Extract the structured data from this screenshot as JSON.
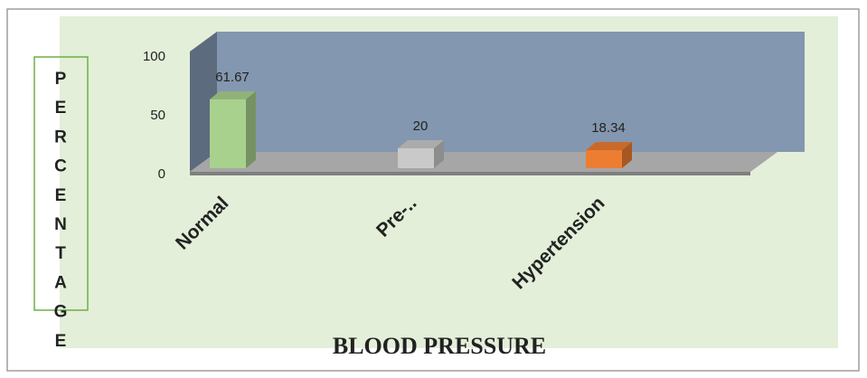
{
  "chart_data": {
    "type": "bar3d",
    "x_label": "BLOOD PRESSURE",
    "y_label": "PERCENTAGE",
    "categories": [
      "Normal",
      "Pre-..",
      "Hypertension"
    ],
    "values": [
      61.67,
      20,
      18.34
    ],
    "colors": [
      "#a9d18e",
      "#c9c9c9",
      "#ed7d31"
    ],
    "ylim": [
      0,
      100
    ],
    "yticks": [
      0,
      50,
      100
    ]
  }
}
